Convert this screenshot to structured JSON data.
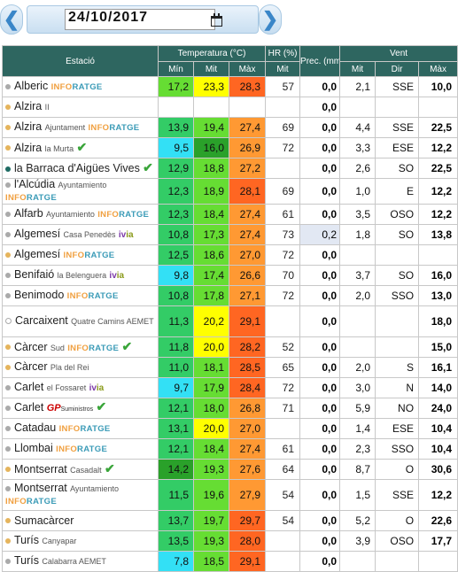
{
  "date": "24/10/2017",
  "headers": {
    "station": "Estació",
    "temp": "Temperatura (°C)",
    "hr": "HR (%)",
    "prec": "Prec. (mm)",
    "wind": "Vent",
    "min": "Mín",
    "mit": "Mit",
    "max": "Màx",
    "hr_mit": "Mit",
    "w_mit": "Mit",
    "w_dir": "Dir",
    "w_max": "Màx"
  },
  "colors": {
    "cyan": "#33e0f5",
    "dkgreen": "#2aa12a",
    "green": "#33cc66",
    "lgreen": "#66dd33",
    "yellow": "#ffff00",
    "orange": "#ff9933",
    "dkorange": "#ff6622"
  },
  "rows": [
    {
      "dot": "gray",
      "name": "Alberic",
      "sub": "",
      "brand": "INFORATGE",
      "check": false,
      "tall": false,
      "min": "17,2",
      "min_c": "lgreen",
      "mit": "23,3",
      "mit_c": "yellow",
      "max": "28,3",
      "max_c": "dkorange",
      "hr": "57",
      "prec": "0,0",
      "wm": "2,1",
      "wd": "SSE",
      "wx": "10,0"
    },
    {
      "dot": "gold",
      "name": "Alzira",
      "sub": "II",
      "brand": "",
      "check": false,
      "tall": false,
      "min": "",
      "min_c": "",
      "mit": "",
      "mit_c": "",
      "max": "",
      "max_c": "",
      "hr": "",
      "prec": "0,0",
      "wm": "",
      "wd": "",
      "wx": ""
    },
    {
      "dot": "gold",
      "name": "Alzira",
      "sub": "Ajuntament",
      "brand": "INFORATGE",
      "check": false,
      "tall": false,
      "min": "13,9",
      "min_c": "green",
      "mit": "19,4",
      "mit_c": "lgreen",
      "max": "27,4",
      "max_c": "orange",
      "hr": "69",
      "prec": "0,0",
      "wm": "4,4",
      "wd": "SSE",
      "wx": "22,5"
    },
    {
      "dot": "gold",
      "name": "Alzira",
      "sub": "la Murta",
      "brand": "",
      "check": true,
      "tall": false,
      "min": "9,5",
      "min_c": "cyan",
      "mit": "16,0",
      "mit_c": "dkgreen",
      "max": "26,9",
      "max_c": "orange",
      "hr": "72",
      "prec": "0,0",
      "wm": "3,3",
      "wd": "ESE",
      "wx": "12,2"
    },
    {
      "dot": "teal",
      "name": "la Barraca d'Aigües Vives",
      "sub": "",
      "brand": "",
      "check": true,
      "tall": false,
      "min": "12,9",
      "min_c": "green",
      "mit": "18,8",
      "mit_c": "lgreen",
      "max": "27,2",
      "max_c": "orange",
      "hr": "",
      "prec": "0,0",
      "wm": "2,6",
      "wd": "SO",
      "wx": "22,5"
    },
    {
      "dot": "gray",
      "name": "l'Alcúdia",
      "sub": "Ayuntamiento",
      "brand": "INFORATGE",
      "check": false,
      "tall": false,
      "min": "12,3",
      "min_c": "green",
      "mit": "18,9",
      "mit_c": "lgreen",
      "max": "28,1",
      "max_c": "dkorange",
      "hr": "69",
      "prec": "0,0",
      "wm": "1,0",
      "wd": "E",
      "wx": "12,2"
    },
    {
      "dot": "gray",
      "name": "Alfarb",
      "sub": "Ayuntamiento",
      "brand": "INFORATGE",
      "check": false,
      "tall": false,
      "min": "12,3",
      "min_c": "green",
      "mit": "18,4",
      "mit_c": "lgreen",
      "max": "27,4",
      "max_c": "orange",
      "hr": "61",
      "prec": "0,0",
      "wm": "3,5",
      "wd": "OSO",
      "wx": "12,2"
    },
    {
      "dot": "gray",
      "name": "Algemesí",
      "sub": "Casa Penedès",
      "brand": "ivia",
      "check": false,
      "tall": false,
      "min": "10,8",
      "min_c": "green",
      "mit": "17,3",
      "mit_c": "lgreen",
      "max": "27,4",
      "max_c": "orange",
      "hr": "73",
      "prec": "0,2",
      "prec_hl": true,
      "wm": "1,8",
      "wd": "SO",
      "wx": "13,8"
    },
    {
      "dot": "gold",
      "name": "Algemesí",
      "sub": "",
      "brand": "INFORATGE",
      "check": false,
      "tall": false,
      "min": "12,5",
      "min_c": "green",
      "mit": "18,6",
      "mit_c": "lgreen",
      "max": "27,0",
      "max_c": "orange",
      "hr": "72",
      "prec": "0,0",
      "wm": "",
      "wd": "",
      "wx": ""
    },
    {
      "dot": "gray",
      "name": "Benifaió",
      "sub": "la Belenguera",
      "brand": "ivia",
      "check": false,
      "tall": false,
      "min": "9,8",
      "min_c": "cyan",
      "mit": "17,4",
      "mit_c": "lgreen",
      "max": "26,6",
      "max_c": "orange",
      "hr": "70",
      "prec": "0,0",
      "wm": "3,7",
      "wd": "SO",
      "wx": "16,0"
    },
    {
      "dot": "gray",
      "name": "Benimodo",
      "sub": "",
      "brand": "INFORATGE",
      "check": false,
      "tall": false,
      "min": "10,8",
      "min_c": "green",
      "mit": "17,8",
      "mit_c": "lgreen",
      "max": "27,1",
      "max_c": "orange",
      "hr": "72",
      "prec": "0,0",
      "wm": "2,0",
      "wd": "SSO",
      "wx": "13,0"
    },
    {
      "dot": "empty",
      "name": "Carcaixent",
      "sub": "Quatre Camins AEMET",
      "brand": "",
      "check": false,
      "tall": true,
      "min": "11,3",
      "min_c": "green",
      "mit": "20,2",
      "mit_c": "yellow",
      "max": "29,1",
      "max_c": "dkorange",
      "hr": "",
      "prec": "0,0",
      "wm": "",
      "wd": "",
      "wx": "18,0"
    },
    {
      "dot": "gold",
      "name": "Càrcer",
      "sub": "Sud",
      "brand": "INFORATGE",
      "check": true,
      "tall": false,
      "min": "11,8",
      "min_c": "green",
      "mit": "20,0",
      "mit_c": "yellow",
      "max": "28,2",
      "max_c": "dkorange",
      "hr": "52",
      "prec": "0,0",
      "wm": "",
      "wd": "",
      "wx": "15,0"
    },
    {
      "dot": "gold",
      "name": "Càrcer",
      "sub": "Pla del Rei",
      "brand": "",
      "check": false,
      "tall": false,
      "min": "11,0",
      "min_c": "green",
      "mit": "18,1",
      "mit_c": "lgreen",
      "max": "28,5",
      "max_c": "dkorange",
      "hr": "65",
      "prec": "0,0",
      "wm": "2,0",
      "wd": "S",
      "wx": "16,1"
    },
    {
      "dot": "gray",
      "name": "Carlet",
      "sub": "el Fossaret",
      "brand": "ivia",
      "check": false,
      "tall": false,
      "min": "9,7",
      "min_c": "cyan",
      "mit": "17,9",
      "mit_c": "lgreen",
      "max": "28,4",
      "max_c": "dkorange",
      "hr": "72",
      "prec": "0,0",
      "wm": "3,0",
      "wd": "N",
      "wx": "14,0"
    },
    {
      "dot": "gray",
      "name": "Carlet",
      "sub": "",
      "brand": "GP",
      "check": true,
      "tall": false,
      "min": "12,1",
      "min_c": "green",
      "mit": "18,0",
      "mit_c": "lgreen",
      "max": "26,8",
      "max_c": "orange",
      "hr": "71",
      "prec": "0,0",
      "wm": "5,9",
      "wd": "NO",
      "wx": "24,0"
    },
    {
      "dot": "gray",
      "name": "Catadau",
      "sub": "",
      "brand": "INFORATGE",
      "check": false,
      "tall": false,
      "min": "13,1",
      "min_c": "green",
      "mit": "20,0",
      "mit_c": "yellow",
      "max": "27,0",
      "max_c": "orange",
      "hr": "",
      "prec": "0,0",
      "wm": "1,4",
      "wd": "ESE",
      "wx": "10,4"
    },
    {
      "dot": "gray",
      "name": "Llombai",
      "sub": "",
      "brand": "INFORATGE",
      "check": false,
      "tall": false,
      "min": "12,1",
      "min_c": "green",
      "mit": "18,4",
      "mit_c": "lgreen",
      "max": "27,4",
      "max_c": "orange",
      "hr": "61",
      "prec": "0,0",
      "wm": "2,3",
      "wd": "SSO",
      "wx": "10,4"
    },
    {
      "dot": "gold",
      "name": "Montserrat",
      "sub": "Casadalt",
      "brand": "",
      "check": true,
      "tall": false,
      "min": "14,2",
      "min_c": "dkgreen",
      "mit": "19,3",
      "mit_c": "lgreen",
      "max": "27,6",
      "max_c": "orange",
      "hr": "64",
      "prec": "0,0",
      "wm": "8,7",
      "wd": "O",
      "wx": "30,6"
    },
    {
      "dot": "gray",
      "name": "Montserrat",
      "sub": "Ayuntamiento",
      "brand": "INFORATGE",
      "check": false,
      "tall": true,
      "min": "11,5",
      "min_c": "green",
      "mit": "19,6",
      "mit_c": "lgreen",
      "max": "27,9",
      "max_c": "orange",
      "hr": "54",
      "prec": "0,0",
      "wm": "1,5",
      "wd": "SSE",
      "wx": "12,2"
    },
    {
      "dot": "gold",
      "name": "Sumacàrcer",
      "sub": "",
      "brand": "",
      "check": false,
      "tall": false,
      "min": "13,7",
      "min_c": "green",
      "mit": "19,7",
      "mit_c": "lgreen",
      "max": "29,7",
      "max_c": "dkorange",
      "hr": "54",
      "prec": "0,0",
      "wm": "5,2",
      "wd": "O",
      "wx": "22,6"
    },
    {
      "dot": "gold",
      "name": "Turís",
      "sub": "Canyapar",
      "brand": "",
      "check": false,
      "tall": false,
      "min": "13,5",
      "min_c": "green",
      "mit": "19,3",
      "mit_c": "lgreen",
      "max": "28,0",
      "max_c": "dkorange",
      "hr": "",
      "prec": "0,0",
      "wm": "3,9",
      "wd": "OSO",
      "wx": "17,7"
    },
    {
      "dot": "gray",
      "name": "Turís",
      "sub": "Calabarra AEMET",
      "brand": "",
      "check": false,
      "tall": false,
      "min": "7,8",
      "min_c": "cyan",
      "mit": "18,5",
      "mit_c": "lgreen",
      "max": "29,1",
      "max_c": "dkorange",
      "hr": "",
      "prec": "0,0",
      "wm": "",
      "wd": "",
      "wx": ""
    }
  ]
}
